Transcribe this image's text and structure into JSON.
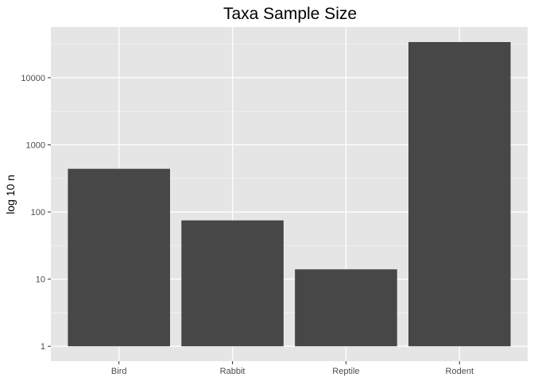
{
  "chart_data": {
    "type": "bar",
    "title": "Taxa Sample Size",
    "xlabel": "",
    "ylabel": "log 10 n",
    "y_scale": "log10",
    "categories": [
      "Bird",
      "Rabbit",
      "Reptile",
      "Rodent"
    ],
    "values": [
      440,
      75,
      14,
      34000
    ],
    "y_ticks": [
      1,
      10,
      100,
      1000,
      10000
    ],
    "y_tick_labels": [
      "1",
      "10",
      "100",
      "1000",
      "10000"
    ],
    "ylim": [
      0.6,
      57000
    ],
    "bar_color": "#474747",
    "panel_color": "#e5e5e5",
    "grid": true,
    "legend": "none"
  }
}
